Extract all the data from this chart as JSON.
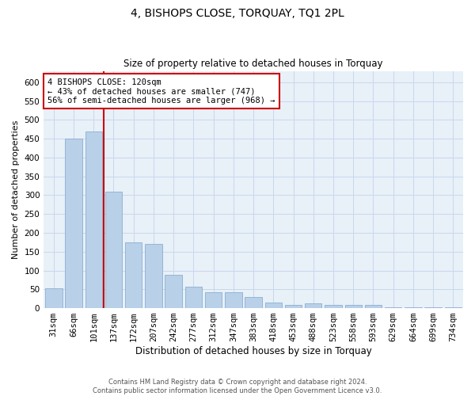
{
  "title": "4, BISHOPS CLOSE, TORQUAY, TQ1 2PL",
  "subtitle": "Size of property relative to detached houses in Torquay",
  "xlabel": "Distribution of detached houses by size in Torquay",
  "ylabel": "Number of detached properties",
  "categories": [
    "31sqm",
    "66sqm",
    "101sqm",
    "137sqm",
    "172sqm",
    "207sqm",
    "242sqm",
    "277sqm",
    "312sqm",
    "347sqm",
    "383sqm",
    "418sqm",
    "453sqm",
    "488sqm",
    "523sqm",
    "558sqm",
    "593sqm",
    "629sqm",
    "664sqm",
    "699sqm",
    "734sqm"
  ],
  "values": [
    52,
    450,
    470,
    310,
    175,
    170,
    88,
    57,
    42,
    42,
    30,
    15,
    8,
    13,
    8,
    8,
    8,
    3,
    3,
    3,
    3
  ],
  "bar_color": "#b8d0e8",
  "bar_edge_color": "#8ab0d0",
  "grid_color": "#c8d8ec",
  "bg_color": "#e8f0f8",
  "vline_index": 2,
  "annotation_text": "4 BISHOPS CLOSE: 120sqm\n← 43% of detached houses are smaller (747)\n56% of semi-detached houses are larger (968) →",
  "annotation_box_facecolor": "#ffffff",
  "annotation_box_edgecolor": "#cc0000",
  "vline_color": "#cc0000",
  "footer_line1": "Contains HM Land Registry data © Crown copyright and database right 2024.",
  "footer_line2": "Contains public sector information licensed under the Open Government Licence v3.0.",
  "ylim": [
    0,
    630
  ],
  "yticks": [
    0,
    50,
    100,
    150,
    200,
    250,
    300,
    350,
    400,
    450,
    500,
    550,
    600
  ],
  "title_fontsize": 10,
  "subtitle_fontsize": 8.5,
  "ylabel_fontsize": 8,
  "xlabel_fontsize": 8.5,
  "tick_fontsize": 7.5,
  "ann_fontsize": 7.5,
  "footer_fontsize": 6
}
